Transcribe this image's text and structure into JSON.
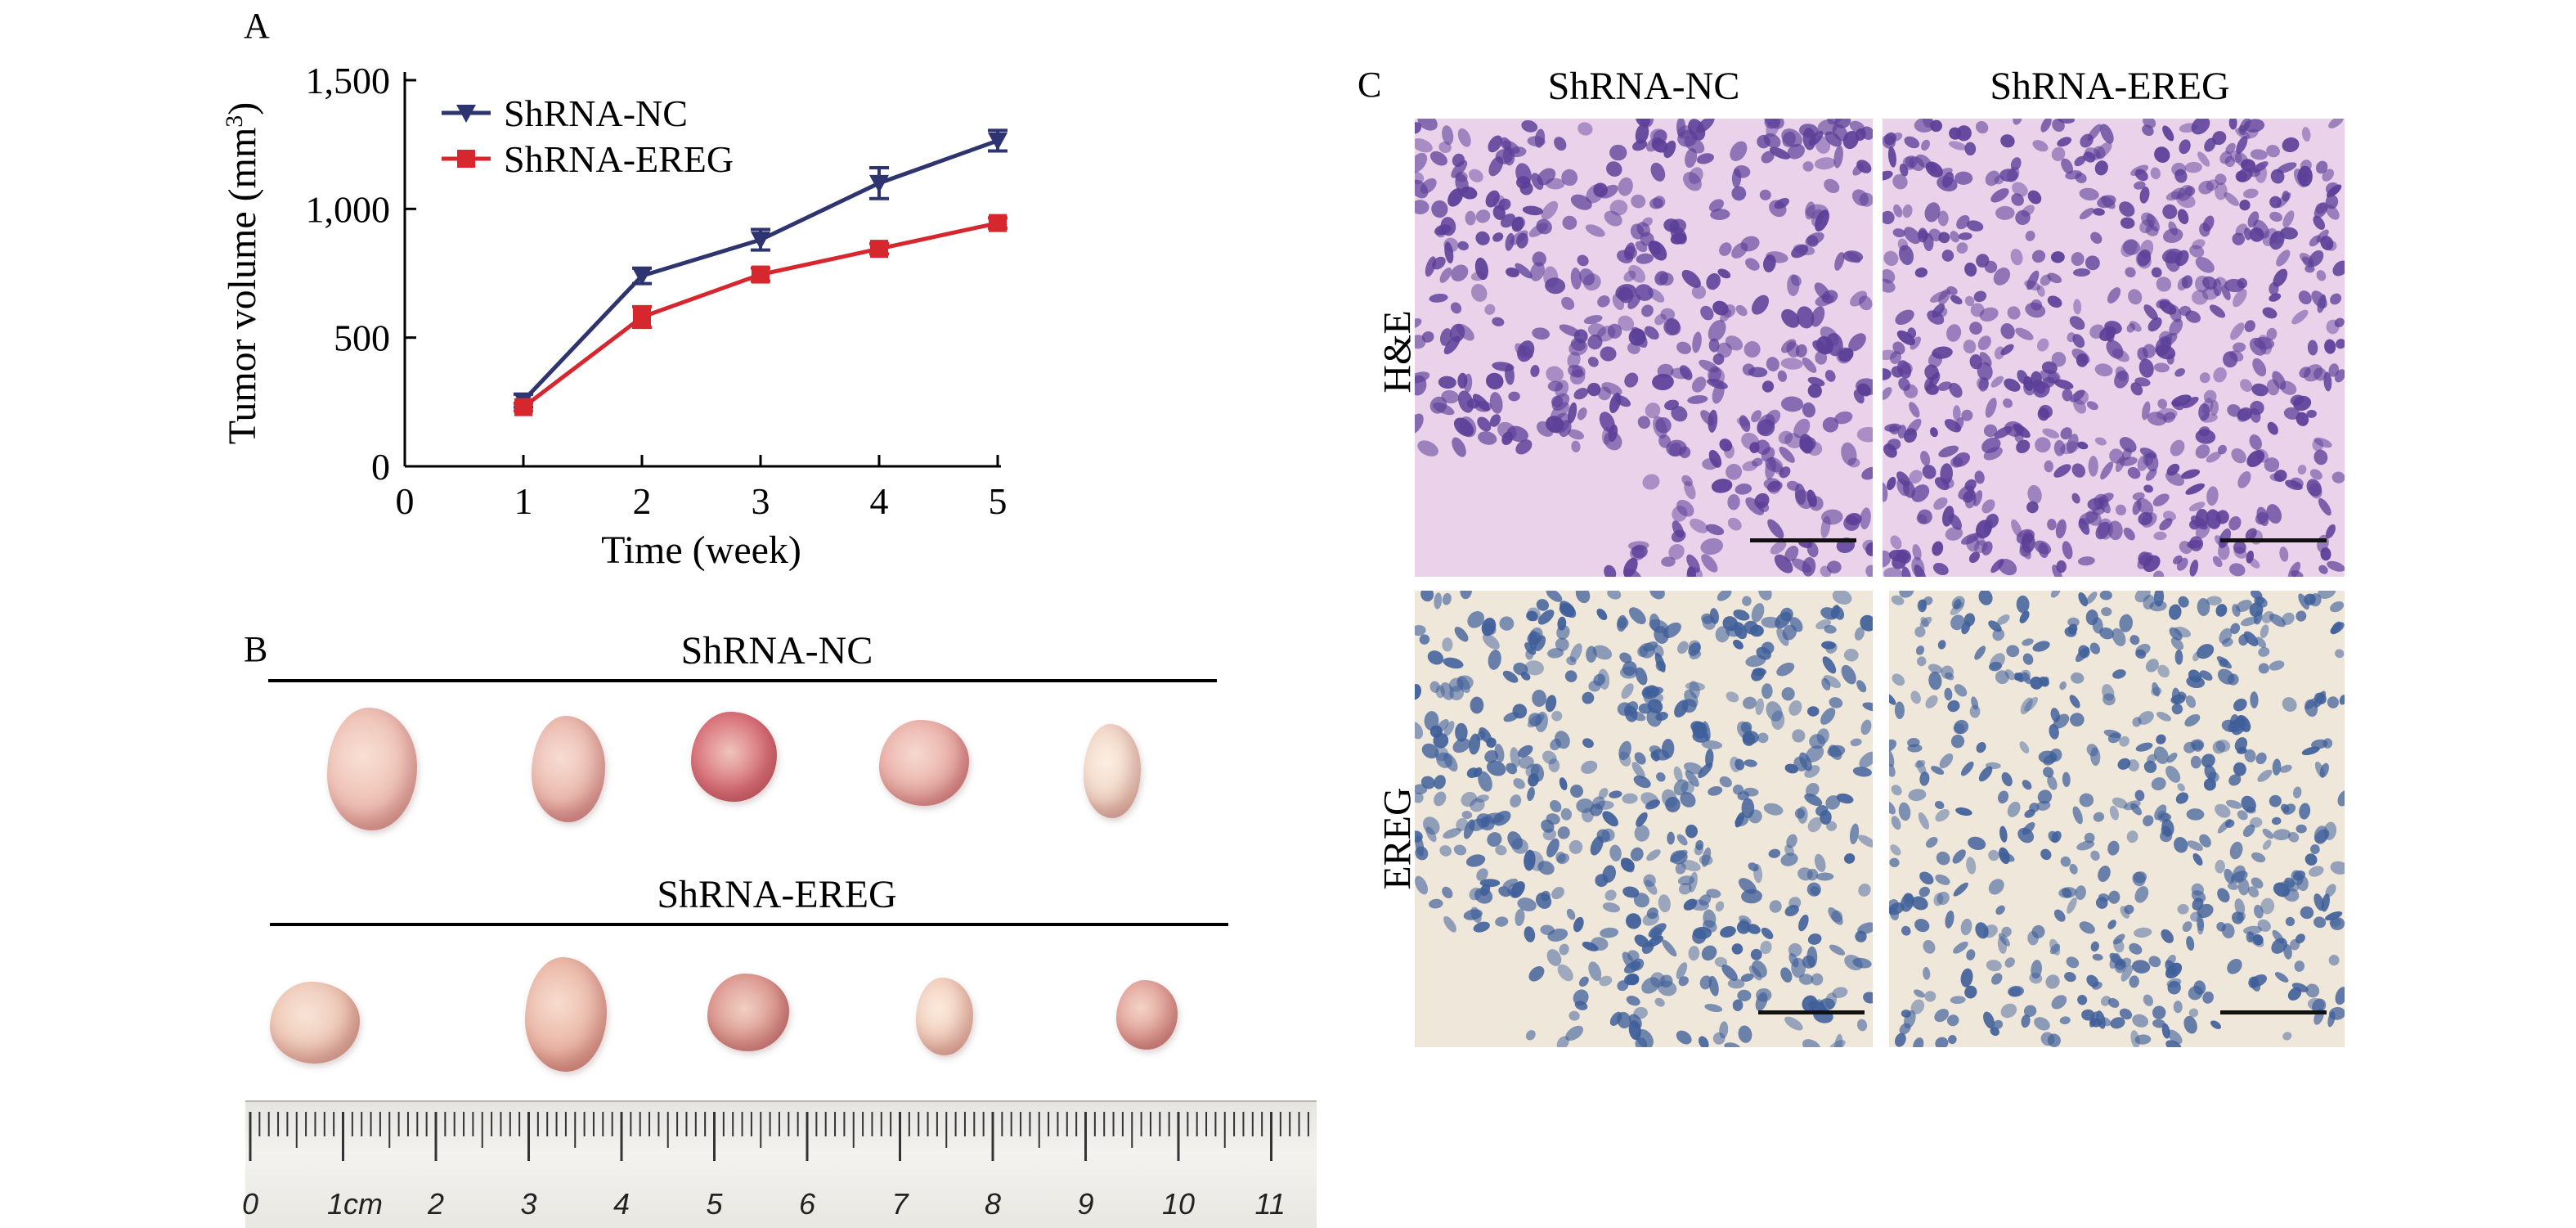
{
  "panels": {
    "a": {
      "letter": "A"
    },
    "b": {
      "letter": "B",
      "group_top": "ShRNA-NC",
      "group_bottom": "ShRNA-EREG"
    },
    "c": {
      "letter": "C",
      "col_left": "ShRNA-NC",
      "col_right": "ShRNA-EREG",
      "row_top": "H&E",
      "row_bottom": "EREG"
    }
  },
  "chart_data": {
    "type": "line",
    "xlabel": "Time (week)",
    "ylabel": "Tumor volume (mm",
    "ylabel_sup": "3",
    "ylabel_close": ")",
    "x_ticks": [
      "0",
      "1",
      "2",
      "3",
      "4",
      "5"
    ],
    "y_ticks": [
      "0",
      "500",
      "1,000",
      "1,500"
    ],
    "xlim": [
      0,
      5
    ],
    "ylim": [
      0,
      1500
    ],
    "legend_position": "top-left",
    "grid": false,
    "series": [
      {
        "name": "ShRNA-NC",
        "color": "#2e3470",
        "marker": "down-triangle",
        "x": [
          1,
          2,
          3,
          4,
          5
        ],
        "y": [
          255,
          740,
          880,
          1100,
          1265
        ],
        "err": [
          25,
          30,
          40,
          60,
          40
        ]
      },
      {
        "name": "ShRNA-EREG",
        "color": "#d6262e",
        "marker": "square",
        "x": [
          1,
          2,
          3,
          4,
          5
        ],
        "y": [
          230,
          580,
          745,
          845,
          945
        ],
        "err": [
          15,
          40,
          25,
          20,
          20
        ]
      }
    ]
  },
  "ruler": {
    "unit_label": "1cm",
    "numbers": [
      "0",
      "2",
      "3",
      "4",
      "5",
      "6",
      "7",
      "8",
      "9",
      "10",
      "11"
    ]
  },
  "colors": {
    "tumor": "#f2cfc4",
    "tumor_dark": "#c8414e",
    "he_bg": "#ead2ea",
    "he_nuclei": "#5b3f98",
    "ihc_bg": "#efe7da",
    "ihc_nuclei": "#3f5f9a"
  }
}
